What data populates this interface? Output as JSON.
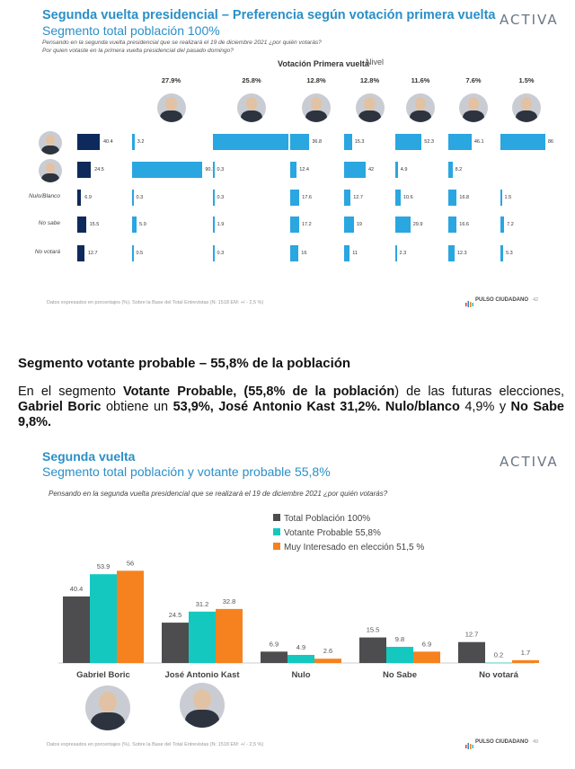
{
  "slide1": {
    "title": "Segunda vuelta presidencial – Preferencia según votación primera vuelta",
    "subtitle": "Segmento total población 100%",
    "question1": "Pensando en la segunda vuelta presidencial que se realizará el 19 de diciembre 2021 ¿por quién votarás?",
    "question2": "Por quien votaste en la primera vuelta presidencial del pasado domingo?",
    "header_label": "Votación Primera vuelta",
    "header_overlap": "Nivel",
    "logo": "ACTIVA",
    "footer": "Datos expresados en porcentajes (%). Sobre la Base del Total Entrevistas (N: 1518 EM: +/ - 2,5 %)",
    "brand": "PULSO CIUDADANO",
    "page": "42",
    "column_pcts": [
      "27.9%",
      "25.8%",
      "12.8%",
      "12.8%",
      "11.6%",
      "7.6%",
      "1.5%"
    ],
    "rows": [
      {
        "label": "",
        "icon": "boric-face",
        "total": 40.4,
        "values": [
          3.2,
          97.2,
          36.8,
          15.3,
          52.3,
          46.1,
          86
        ]
      },
      {
        "label": "",
        "icon": "kast-face",
        "total": 24.5,
        "values": [
          90.1,
          0.3,
          12.4,
          42,
          4.9,
          8.2,
          null
        ]
      },
      {
        "label": "Nulo/Blanco",
        "total": 6.9,
        "values": [
          0.3,
          0.3,
          17.6,
          12.7,
          10.6,
          16.8,
          1.5
        ]
      },
      {
        "label": "No sabe",
        "total": 15.5,
        "values": [
          5.9,
          1.9,
          17.2,
          19,
          29.9,
          16.6,
          7.2
        ]
      },
      {
        "label": "No votará",
        "total": 12.7,
        "values": [
          0.5,
          0.3,
          16,
          11,
          2.3,
          12.3,
          5.3
        ]
      }
    ],
    "colors": {
      "bar": "#2aa6e0",
      "total": "#0e2a5c",
      "title": "#2a8fc7"
    }
  },
  "section": {
    "heading": "Segmento votante probable – 55,8% de la población",
    "p_a": "En el segmento ",
    "p_b": "Votante Probable, (",
    "p_c": "55,8% de la población",
    "p_d": ") de las futuras elecciones, ",
    "p_e": "Gabriel Boric",
    "p_f": " obtiene un ",
    "p_g": "53,9%, José Antonio Kast 31,2%. Nulo/blanco",
    "p_h": " 4,9% y ",
    "p_i": "No Sabe 9,8%."
  },
  "slide2": {
    "title": "Segunda vuelta",
    "subtitle": "Segmento total población y votante probable 55,8%",
    "question": "Pensando en la segunda vuelta presidencial que se realizará el 19 de diciembre 2021 ¿por quién votarás?",
    "logo": "ACTIVA",
    "footer": "Datos expresados en porcentajes (%). Sobre la Base del Total Entrevistas (N: 1518 EM: +/ - 2,5 %)",
    "brand": "PULSO CIUDADANO",
    "page": "49"
  },
  "chart_data": {
    "type": "bar",
    "categories": [
      "Gabriel Boric",
      "José Antonio Kast",
      "Nulo",
      "No Sabe",
      "No votará"
    ],
    "series": [
      {
        "name": "Total Población 100%",
        "color": "#4d4d4f",
        "values": [
          40.4,
          24.5,
          6.9,
          15.5,
          12.7
        ]
      },
      {
        "name": "Votante Probable 55,8%",
        "color": "#14c8c0",
        "values": [
          53.9,
          31.2,
          4.9,
          9.8,
          0.2
        ]
      },
      {
        "name": "Muy Interesado en elección 51,5 %",
        "color": "#f6821f",
        "values": [
          56,
          32.8,
          2.6,
          6.9,
          1.7
        ]
      }
    ],
    "ylim": [
      0,
      60
    ],
    "legend": "top-right",
    "grid": false
  }
}
